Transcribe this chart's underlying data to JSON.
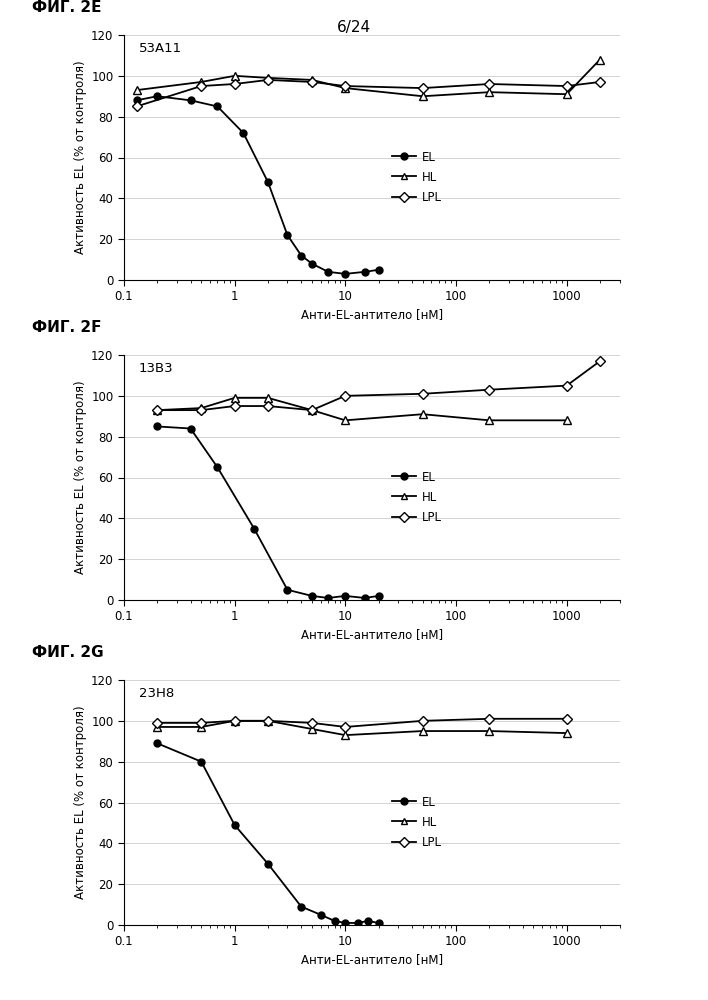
{
  "page_label": "6/24",
  "panels": [
    {
      "fig_label": "ФИГ. 2E",
      "antibody": "53A11",
      "EL_x": [
        0.13,
        0.2,
        0.4,
        0.7,
        1.2,
        2.0,
        3.0,
        4.0,
        5.0,
        7.0,
        10.0,
        15.0,
        20.0
      ],
      "EL_y": [
        88,
        90,
        88,
        85,
        72,
        48,
        22,
        12,
        8,
        4,
        3,
        4,
        5
      ],
      "HL_x": [
        0.13,
        0.5,
        1.0,
        2.0,
        5.0,
        10.0,
        50.0,
        200.0,
        1000.0,
        2000.0
      ],
      "HL_y": [
        93,
        97,
        100,
        99,
        98,
        94,
        90,
        92,
        91,
        108
      ],
      "LPL_x": [
        0.13,
        0.5,
        1.0,
        2.0,
        5.0,
        10.0,
        50.0,
        200.0,
        1000.0,
        2000.0
      ],
      "LPL_y": [
        85,
        95,
        96,
        98,
        97,
        95,
        94,
        96,
        95,
        97
      ]
    },
    {
      "fig_label": "ФИГ. 2F",
      "antibody": "13B3",
      "EL_x": [
        0.2,
        0.4,
        0.7,
        1.5,
        3.0,
        5.0,
        7.0,
        10.0,
        15.0,
        20.0
      ],
      "EL_y": [
        85,
        84,
        65,
        35,
        5,
        2,
        1,
        2,
        1,
        2
      ],
      "HL_x": [
        0.2,
        0.5,
        1.0,
        2.0,
        5.0,
        10.0,
        50.0,
        200.0,
        1000.0
      ],
      "HL_y": [
        93,
        94,
        99,
        99,
        93,
        88,
        91,
        88,
        88
      ],
      "LPL_x": [
        0.2,
        0.5,
        1.0,
        2.0,
        5.0,
        10.0,
        50.0,
        200.0,
        1000.0,
        2000.0
      ],
      "LPL_y": [
        93,
        93,
        95,
        95,
        93,
        100,
        101,
        103,
        105,
        117
      ]
    },
    {
      "fig_label": "ФИГ. 2G",
      "antibody": "23H8",
      "EL_x": [
        0.2,
        0.5,
        1.0,
        2.0,
        4.0,
        6.0,
        8.0,
        10.0,
        13.0,
        16.0,
        20.0
      ],
      "EL_y": [
        89,
        80,
        49,
        30,
        9,
        5,
        2,
        1,
        1,
        2,
        1
      ],
      "HL_x": [
        0.2,
        0.5,
        1.0,
        2.0,
        5.0,
        10.0,
        50.0,
        200.0,
        1000.0
      ],
      "HL_y": [
        97,
        97,
        100,
        100,
        96,
        93,
        95,
        95,
        94
      ],
      "LPL_x": [
        0.2,
        0.5,
        1.0,
        2.0,
        5.0,
        10.0,
        50.0,
        200.0,
        1000.0
      ],
      "LPL_y": [
        99,
        99,
        100,
        100,
        99,
        97,
        100,
        101,
        101
      ]
    }
  ],
  "xlabel": "Анти-EL-антитело [нМ]",
  "ylabel": "Активность EL (% от контроля)",
  "ylim": [
    0,
    120
  ],
  "yticks": [
    0,
    20,
    40,
    60,
    80,
    100,
    120
  ],
  "xlim_log": [
    0.1,
    3000
  ],
  "xticks": [
    0.1,
    1,
    10,
    100,
    1000
  ],
  "xticklabels": [
    "0.1",
    "1",
    "10",
    "100",
    "1000"
  ],
  "background_color": "#ffffff",
  "grid_color": "#cccccc",
  "line_color": "#000000"
}
